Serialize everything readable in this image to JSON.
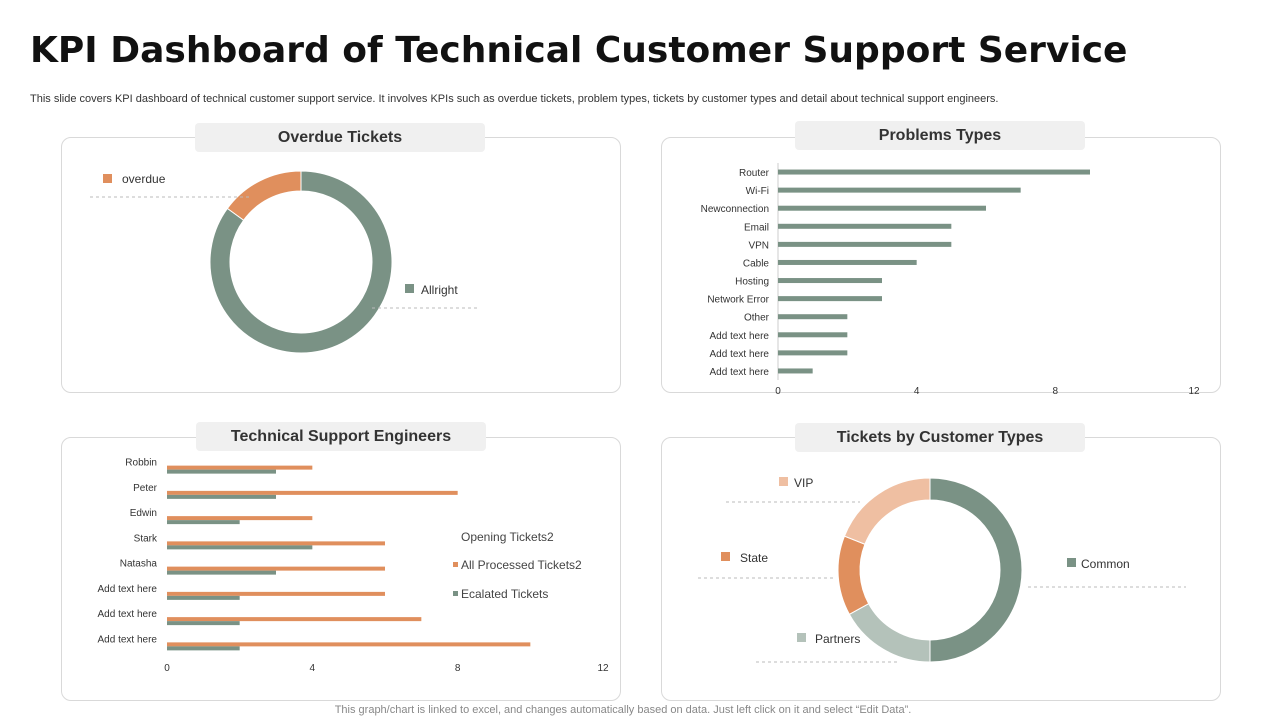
{
  "page": {
    "title": "KPI Dashboard of Technical Customer Support Service",
    "subtitle": "This slide covers KPI dashboard of technical customer support service. It involves KPIs such as overdue tickets, problem types, tickets by customer types and detail about technical support engineers.",
    "footer": "This graph/chart is linked to excel,  and changes automatically based on data. Just left click on it and select “Edit Data”."
  },
  "colors": {
    "green": "#7a9285",
    "orange": "#e08f5d",
    "light_orange": "#efbfa2",
    "light_green": "#b4c2ba",
    "grid": "#cccccc"
  },
  "chart_data": [
    {
      "id": "overdue",
      "type": "pie",
      "donut": true,
      "title": "Overdue Tickets",
      "labels": [
        "overdue",
        "Allright"
      ],
      "values": [
        15,
        85
      ]
    },
    {
      "id": "problems",
      "type": "bar",
      "orientation": "horizontal",
      "title": "Problems Types",
      "categories": [
        "Router",
        "Wi-Fi",
        "Newconnection",
        "Email",
        "VPN",
        "Cable",
        "Hosting",
        "Network Error",
        "Other",
        "Add text here",
        "Add text here",
        "Add text here"
      ],
      "values": [
        9,
        7,
        6,
        5,
        5,
        4,
        3,
        3,
        2,
        2,
        2,
        1
      ],
      "xlim": [
        0,
        12
      ],
      "xticks": [
        "0",
        "4",
        "8",
        "12"
      ]
    },
    {
      "id": "engineers",
      "type": "bar",
      "orientation": "horizontal",
      "title": "Technical Support Engineers",
      "categories": [
        "Robbin",
        "Peter",
        "Edwin",
        "Stark",
        "Natasha",
        "Add text here",
        "Add text here",
        "Add text here"
      ],
      "series": [
        {
          "name": "Opening Tickets2",
          "values": [
            0,
            0,
            0,
            0,
            0,
            0,
            0,
            0
          ]
        },
        {
          "name": "All Processed Tickets2",
          "values": [
            4,
            8,
            4,
            6,
            6,
            6,
            7,
            10
          ]
        },
        {
          "name": "Ecalated Tickets",
          "values": [
            3,
            3,
            2,
            4,
            3,
            2,
            2,
            2
          ]
        }
      ],
      "xlim": [
        0,
        12
      ],
      "xticks": [
        "0",
        "4",
        "8",
        "12"
      ]
    },
    {
      "id": "customers",
      "type": "pie",
      "donut": true,
      "title": "Tickets by Customer Types",
      "labels": [
        "Common",
        "Partners",
        "State",
        "VIP"
      ],
      "values": [
        50,
        17,
        14,
        19
      ]
    }
  ]
}
